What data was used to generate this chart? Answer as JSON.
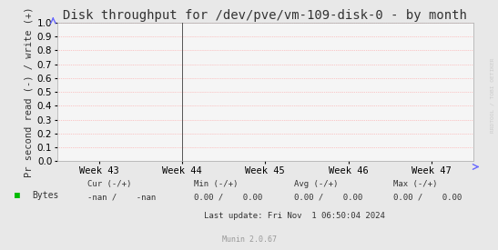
{
  "title": "Disk throughput for /dev/pve/vm-109-disk-0 - by month",
  "ylabel": "Pr second read (-) / write (+)",
  "ylim": [
    0.0,
    1.0
  ],
  "yticks": [
    0.0,
    0.1,
    0.2,
    0.3,
    0.4,
    0.5,
    0.6,
    0.7,
    0.8,
    0.9,
    1.0
  ],
  "xtick_labels": [
    "Week 43",
    "Week 44",
    "Week 45",
    "Week 46",
    "Week 47"
  ],
  "xtick_positions": [
    0.1,
    0.3,
    0.5,
    0.7,
    0.9
  ],
  "vertical_line_x": 0.3,
  "bg_color": "#e8e8e8",
  "plot_bg_color": "#f5f5f5",
  "grid_color": "#ff9999",
  "title_fontsize": 10,
  "tick_fontsize": 7.5,
  "ylabel_fontsize": 7.5,
  "legend_label": "Bytes",
  "legend_color": "#00bb00",
  "cur_label": "Cur (-/+)",
  "cur_value": "-nan /    -nan",
  "min_label": "Min (-/+)",
  "min_value": "0.00 /    0.00",
  "avg_label": "Avg (-/+)",
  "avg_value": "0.00 /    0.00",
  "max_label": "Max (-/+)",
  "max_value": "0.00 /    0.00",
  "last_update": "Last update: Fri Nov  1 06:50:04 2024",
  "munin_label": "Munin 2.0.67",
  "right_label": "RRDTOOL / TOBI OETIKER",
  "vline_color": "#555555",
  "text_color": "#333333",
  "munin_color": "#999999"
}
